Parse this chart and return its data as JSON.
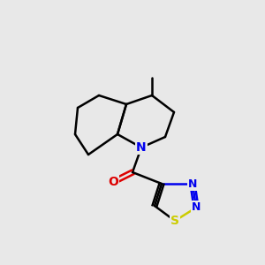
{
  "background_color": "#e8e8e8",
  "bond_color": "#000000",
  "bond_lw": 1.8,
  "atom_colors": {
    "N": "#0000ee",
    "O": "#dd0000",
    "S": "#cccc00"
  },
  "font_size": 9,
  "figsize": [
    3.0,
    3.0
  ],
  "dpi": 100
}
